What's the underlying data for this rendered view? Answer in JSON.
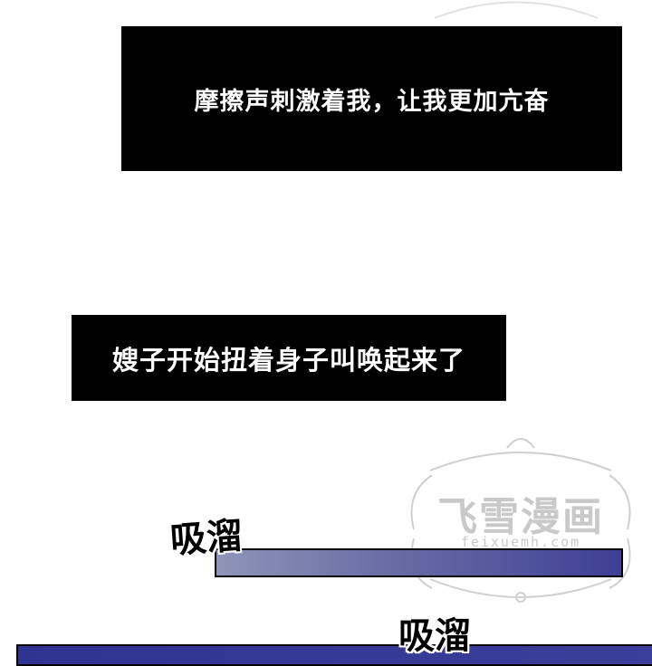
{
  "captions": [
    {
      "text": "摩擦声刺激着我，让我更加亢奋"
    },
    {
      "text": "嫂子开始扭着身子叫唤起来了"
    }
  ],
  "watermark": {
    "text": "飞雪漫画",
    "url": "feixuemh.com"
  },
  "sound_effects": [
    "吸溜",
    "吸溜"
  ],
  "colors": {
    "caption_bg": "#000000",
    "caption_text": "#ffffff",
    "bar_blue": "#3e3f95"
  }
}
